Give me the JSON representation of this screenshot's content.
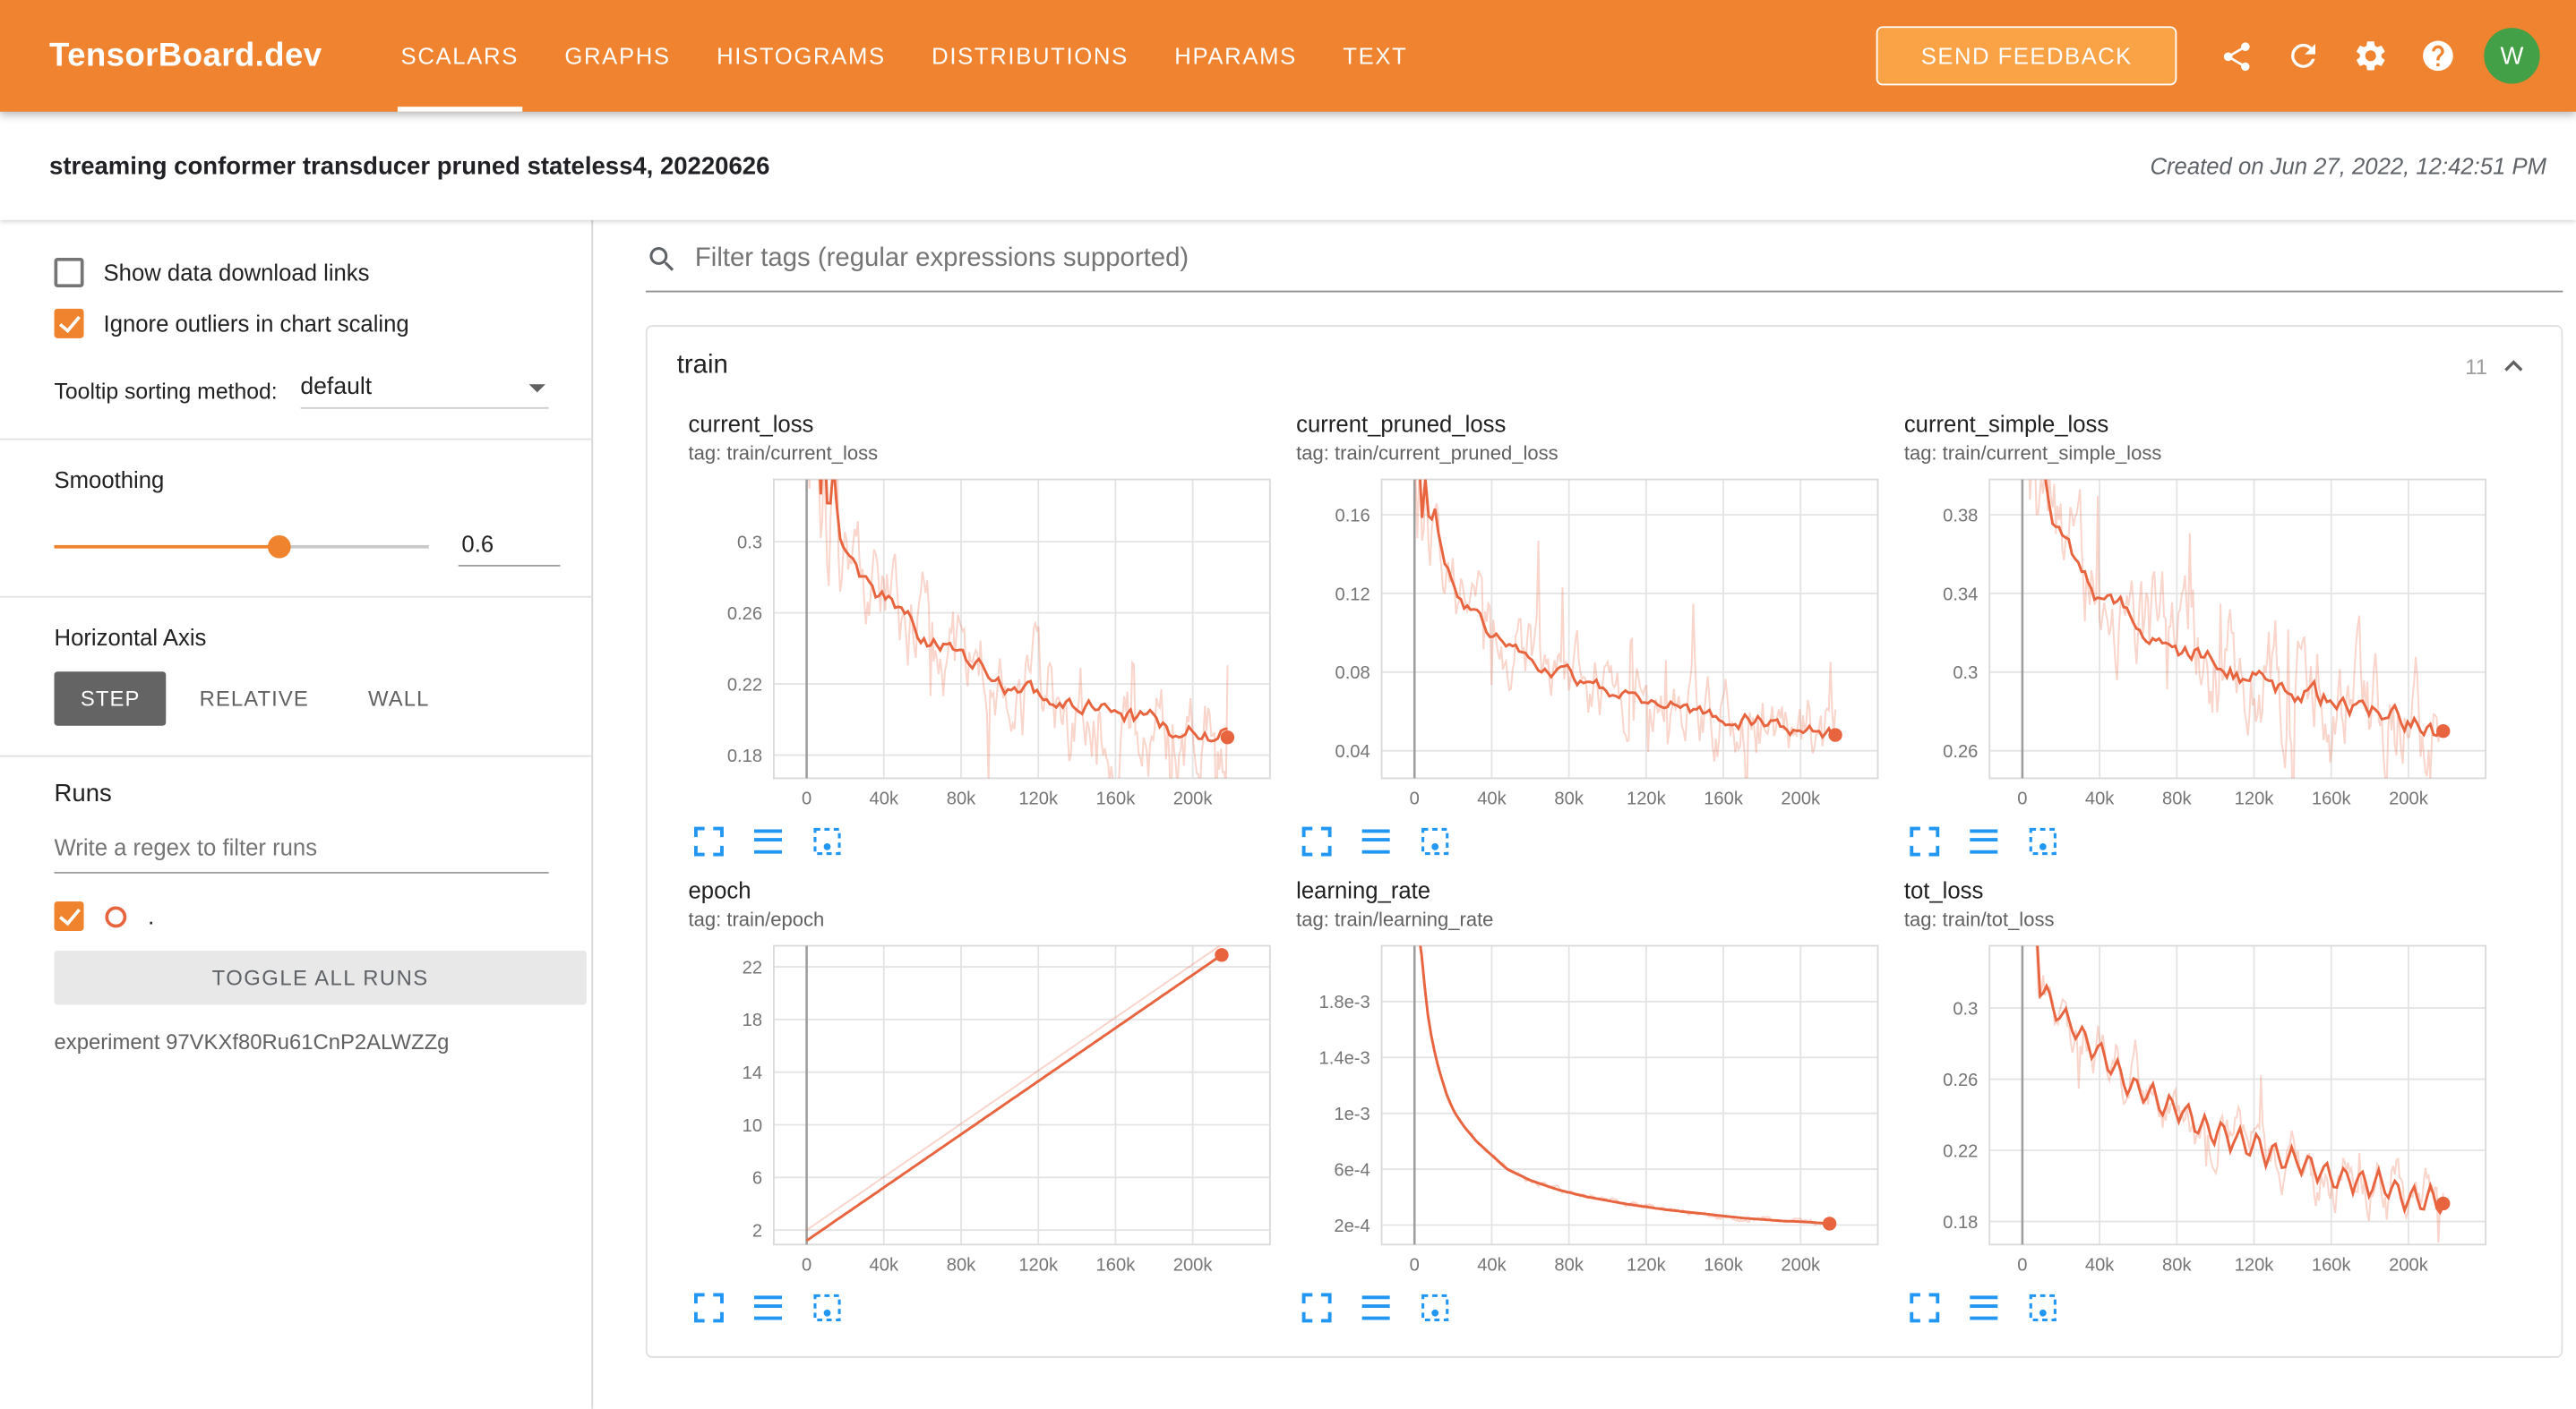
{
  "colors": {
    "header_orange": "#ef832f",
    "accent_orange": "#f0832e",
    "series_orange": "#e8643f",
    "toolbar_blue": "#2196f3",
    "avatar_green": "#43a047"
  },
  "header": {
    "logo": "TensorBoard.dev",
    "nav": [
      {
        "label": "SCALARS",
        "active": true
      },
      {
        "label": "GRAPHS",
        "active": false
      },
      {
        "label": "HISTOGRAMS",
        "active": false
      },
      {
        "label": "DISTRIBUTIONS",
        "active": false
      },
      {
        "label": "HPARAMS",
        "active": false
      },
      {
        "label": "TEXT",
        "active": false
      }
    ],
    "send_feedback_label": "SEND FEEDBACK",
    "avatar_initial": "W"
  },
  "subheader": {
    "title": "streaming conformer transducer pruned stateless4, 20220626",
    "created": "Created on Jun 27, 2022, 12:42:51 PM"
  },
  "sidebar": {
    "show_download_label": "Show data download links",
    "ignore_outliers_label": "Ignore outliers in chart scaling",
    "tooltip_sorting_label": "Tooltip sorting method:",
    "tooltip_sorting_value": "default",
    "smoothing_label": "Smoothing",
    "smoothing_value": "0.6",
    "horizontal_axis_label": "Horizontal Axis",
    "axis_buttons": [
      {
        "label": "STEP",
        "active": true
      },
      {
        "label": "RELATIVE",
        "active": false
      },
      {
        "label": "WALL",
        "active": false
      }
    ],
    "runs_label": "Runs",
    "runs_filter_placeholder": "Write a regex to filter runs",
    "run_item": {
      "name": "."
    },
    "toggle_all_label": "TOGGLE ALL RUNS",
    "experiment_label": "experiment 97VKXf80Ru61CnP2ALWZZg"
  },
  "main": {
    "filter_placeholder": "Filter tags (regular expressions supported)",
    "group": {
      "name": "train",
      "count": "11"
    }
  },
  "chart_data": [
    {
      "type": "line",
      "title": "current_loss",
      "tag": "tag: train/current_loss",
      "xticks": [
        0,
        40000,
        80000,
        120000,
        160000,
        200000
      ],
      "xtick_labels": [
        "0",
        "40k",
        "80k",
        "120k",
        "160k",
        "200k"
      ],
      "yticks": [
        0.18,
        0.22,
        0.26,
        0.3
      ],
      "ytick_labels": [
        "0.18",
        "0.22",
        "0.26",
        "0.3"
      ],
      "ylim": [
        0.167,
        0.335
      ],
      "series_color": "#e8643f",
      "smoothing_applied": 0.6,
      "trend": [
        [
          600,
          0.36
        ],
        [
          1200,
          0.3
        ],
        [
          2000,
          0.43
        ],
        [
          3500,
          0.33
        ],
        [
          5000,
          0.4
        ],
        [
          7000,
          0.32
        ],
        [
          9000,
          0.37
        ],
        [
          11000,
          0.315
        ],
        [
          14000,
          0.345
        ],
        [
          17000,
          0.305
        ],
        [
          20000,
          0.3
        ],
        [
          30000,
          0.278
        ],
        [
          40000,
          0.268
        ],
        [
          50000,
          0.256
        ],
        [
          60000,
          0.247
        ],
        [
          70000,
          0.24
        ],
        [
          80000,
          0.234
        ],
        [
          90000,
          0.228
        ],
        [
          100000,
          0.223
        ],
        [
          110000,
          0.219
        ],
        [
          120000,
          0.215
        ],
        [
          130000,
          0.211
        ],
        [
          140000,
          0.207
        ],
        [
          150000,
          0.204
        ],
        [
          160000,
          0.201
        ],
        [
          170000,
          0.199
        ],
        [
          180000,
          0.197
        ],
        [
          190000,
          0.195
        ],
        [
          200000,
          0.193
        ],
        [
          210000,
          0.191
        ],
        [
          218000,
          0.19
        ]
      ],
      "noise": {
        "smooth": 0.0045,
        "raw": 0.02,
        "spike_p": 0.05,
        "seed": 101
      },
      "end_dot": true
    },
    {
      "type": "line",
      "title": "current_pruned_loss",
      "tag": "tag: train/current_pruned_loss",
      "xticks": [
        0,
        40000,
        80000,
        120000,
        160000,
        200000
      ],
      "xtick_labels": [
        "0",
        "40k",
        "80k",
        "120k",
        "160k",
        "200k"
      ],
      "yticks": [
        0.04,
        0.08,
        0.12,
        0.16
      ],
      "ytick_labels": [
        "0.04",
        "0.08",
        "0.12",
        "0.16"
      ],
      "ylim": [
        0.026,
        0.178
      ],
      "series_color": "#e8643f",
      "smoothing_applied": 0.6,
      "trend": [
        [
          600,
          0.19
        ],
        [
          1500,
          0.16
        ],
        [
          2500,
          0.2
        ],
        [
          4000,
          0.158
        ],
        [
          6000,
          0.185
        ],
        [
          8000,
          0.15
        ],
        [
          10000,
          0.165
        ],
        [
          13000,
          0.142
        ],
        [
          16000,
          0.132
        ],
        [
          20000,
          0.124
        ],
        [
          25000,
          0.115
        ],
        [
          30000,
          0.109
        ],
        [
          40000,
          0.1
        ],
        [
          50000,
          0.093
        ],
        [
          60000,
          0.088
        ],
        [
          70000,
          0.083
        ],
        [
          80000,
          0.079
        ],
        [
          90000,
          0.075
        ],
        [
          100000,
          0.072
        ],
        [
          110000,
          0.069
        ],
        [
          120000,
          0.067
        ],
        [
          130000,
          0.064
        ],
        [
          140000,
          0.062
        ],
        [
          150000,
          0.06
        ],
        [
          160000,
          0.058
        ],
        [
          170000,
          0.056
        ],
        [
          180000,
          0.055
        ],
        [
          190000,
          0.053
        ],
        [
          200000,
          0.052
        ],
        [
          210000,
          0.05
        ],
        [
          218000,
          0.048
        ]
      ],
      "noise": {
        "smooth": 0.003,
        "raw": 0.013,
        "spike_p": 0.05,
        "seed": 202
      },
      "end_dot": true
    },
    {
      "type": "line",
      "title": "current_simple_loss",
      "tag": "tag: train/current_simple_loss",
      "xticks": [
        0,
        40000,
        80000,
        120000,
        160000,
        200000
      ],
      "xtick_labels": [
        "0",
        "40k",
        "80k",
        "120k",
        "160k",
        "200k"
      ],
      "yticks": [
        0.26,
        0.3,
        0.34,
        0.38
      ],
      "ytick_labels": [
        "0.26",
        "0.3",
        "0.34",
        "0.38"
      ],
      "ylim": [
        0.246,
        0.398
      ],
      "series_color": "#e8643f",
      "smoothing_applied": 0.6,
      "trend": [
        [
          600,
          0.44
        ],
        [
          1500,
          0.4
        ],
        [
          2500,
          0.45
        ],
        [
          4000,
          0.405
        ],
        [
          6000,
          0.43
        ],
        [
          8000,
          0.395
        ],
        [
          10000,
          0.415
        ],
        [
          13000,
          0.388
        ],
        [
          16000,
          0.378
        ],
        [
          20000,
          0.368
        ],
        [
          25000,
          0.358
        ],
        [
          30000,
          0.35
        ],
        [
          40000,
          0.34
        ],
        [
          50000,
          0.332
        ],
        [
          60000,
          0.325
        ],
        [
          70000,
          0.319
        ],
        [
          80000,
          0.314
        ],
        [
          90000,
          0.309
        ],
        [
          100000,
          0.305
        ],
        [
          110000,
          0.301
        ],
        [
          120000,
          0.297
        ],
        [
          130000,
          0.294
        ],
        [
          140000,
          0.291
        ],
        [
          150000,
          0.288
        ],
        [
          160000,
          0.285
        ],
        [
          170000,
          0.282
        ],
        [
          180000,
          0.28
        ],
        [
          190000,
          0.277
        ],
        [
          200000,
          0.275
        ],
        [
          210000,
          0.272
        ],
        [
          218000,
          0.27
        ]
      ],
      "noise": {
        "smooth": 0.0045,
        "raw": 0.02,
        "spike_p": 0.05,
        "seed": 303
      },
      "end_dot": true
    },
    {
      "type": "line",
      "title": "epoch",
      "tag": "tag: train/epoch",
      "xticks": [
        0,
        40000,
        80000,
        120000,
        160000,
        200000
      ],
      "xtick_labels": [
        "0",
        "40k",
        "80k",
        "120k",
        "160k",
        "200k"
      ],
      "yticks": [
        2,
        6,
        10,
        14,
        18,
        22
      ],
      "ytick_labels": [
        "2",
        "6",
        "10",
        "14",
        "18",
        "22"
      ],
      "ylim": [
        0.9,
        23.6
      ],
      "series_color": "#e8643f",
      "smoothing_applied": 0.6,
      "trend": [
        [
          0,
          1.2
        ],
        [
          215000,
          22.9
        ]
      ],
      "pale_offset": 0.8,
      "noise": {
        "smooth": 0,
        "raw": 0,
        "spike_p": 0,
        "seed": 404
      },
      "end_dot": true
    },
    {
      "type": "line",
      "title": "learning_rate",
      "tag": "tag: train/learning_rate",
      "xticks": [
        0,
        40000,
        80000,
        120000,
        160000,
        200000
      ],
      "xtick_labels": [
        "0",
        "40k",
        "80k",
        "120k",
        "160k",
        "200k"
      ],
      "yticks": [
        0.0002,
        0.0006,
        0.001,
        0.0014,
        0.0018
      ],
      "ytick_labels": [
        "2e-4",
        "6e-4",
        "1e-3",
        "1.4e-3",
        "1.8e-3"
      ],
      "ylim": [
        6e-05,
        0.0022
      ],
      "series_color": "#e8643f",
      "smoothing_applied": 0.6,
      "trend": [
        [
          2000,
          0.0023
        ],
        [
          4000,
          0.0021
        ],
        [
          6000,
          0.0018
        ],
        [
          8000,
          0.0016
        ],
        [
          11000,
          0.0014
        ],
        [
          14000,
          0.00125
        ],
        [
          17000,
          0.00112
        ],
        [
          21000,
          0.001
        ],
        [
          26000,
          0.0009
        ],
        [
          32000,
          0.0008
        ],
        [
          40000,
          0.0007
        ],
        [
          48000,
          0.0006
        ],
        [
          60000,
          0.00052
        ],
        [
          75000,
          0.00045
        ],
        [
          90000,
          0.0004
        ],
        [
          110000,
          0.00035
        ],
        [
          130000,
          0.00031
        ],
        [
          150000,
          0.00028
        ],
        [
          170000,
          0.00025
        ],
        [
          190000,
          0.00023
        ],
        [
          205000,
          0.00022
        ],
        [
          215000,
          0.00021
        ]
      ],
      "noise": {
        "smooth": 0,
        "raw": 1.5e-05,
        "spike_p": 0,
        "seed": 505
      },
      "end_dot": true
    },
    {
      "type": "line",
      "title": "tot_loss",
      "tag": "tag: train/tot_loss",
      "xticks": [
        0,
        40000,
        80000,
        120000,
        160000,
        200000
      ],
      "xtick_labels": [
        "0",
        "40k",
        "80k",
        "120k",
        "160k",
        "200k"
      ],
      "yticks": [
        0.18,
        0.22,
        0.26,
        0.3
      ],
      "ytick_labels": [
        "0.18",
        "0.22",
        "0.26",
        "0.3"
      ],
      "ylim": [
        0.167,
        0.335
      ],
      "series_color": "#e8643f",
      "smoothing_applied": 0.6,
      "trend": [
        [
          800,
          0.4
        ],
        [
          1600,
          0.33
        ],
        [
          2500,
          0.43
        ],
        [
          4000,
          0.34
        ],
        [
          6000,
          0.37
        ],
        [
          9000,
          0.315
        ],
        [
          15000,
          0.302
        ],
        [
          30000,
          0.285
        ],
        [
          45000,
          0.268
        ],
        [
          60000,
          0.255
        ],
        [
          75000,
          0.245
        ],
        [
          90000,
          0.236
        ],
        [
          105000,
          0.229
        ],
        [
          120000,
          0.222
        ],
        [
          135000,
          0.216
        ],
        [
          150000,
          0.211
        ],
        [
          165000,
          0.206
        ],
        [
          180000,
          0.201
        ],
        [
          195000,
          0.197
        ],
        [
          210000,
          0.193
        ],
        [
          218000,
          0.191
        ]
      ],
      "osc": {
        "period": 9000,
        "amp": 0.008
      },
      "noise": {
        "smooth": 0.0015,
        "raw": 0.01,
        "spike_p": 0.03,
        "seed": 606
      },
      "end_dot": true
    }
  ]
}
